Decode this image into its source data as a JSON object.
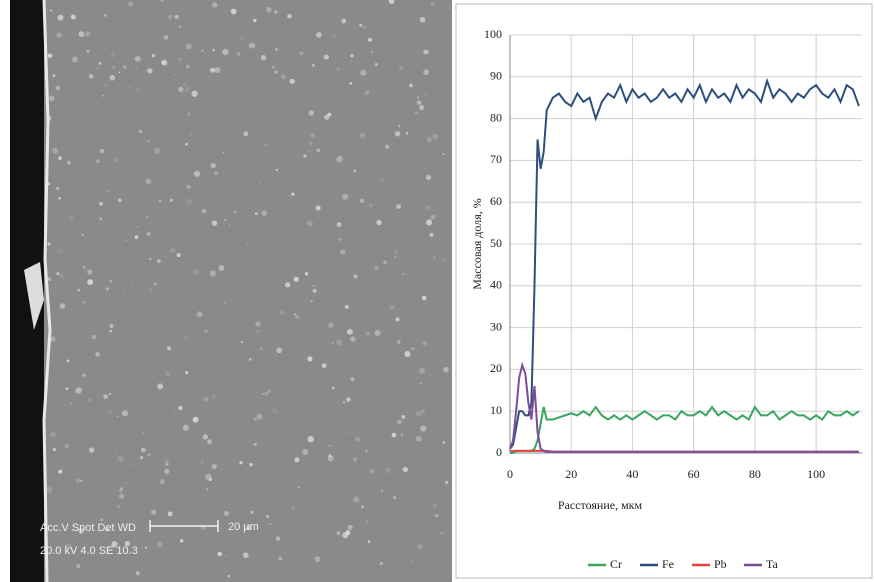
{
  "micrograph": {
    "label_line1": "Acc.V  Spot Det  WD",
    "label_line2": "20.0 kV 4.0   SE   10.3",
    "scale_bar": "20 µm"
  },
  "chart_data": {
    "type": "line",
    "y_label": "Массовая доля, %",
    "x_label": "Расстояние, мкм",
    "x": [
      0,
      1,
      2,
      3,
      4,
      5,
      6,
      7,
      8,
      9,
      10,
      11,
      12,
      14,
      16,
      18,
      20,
      22,
      24,
      26,
      28,
      30,
      32,
      34,
      36,
      38,
      40,
      42,
      44,
      46,
      48,
      50,
      52,
      54,
      56,
      58,
      60,
      62,
      64,
      66,
      68,
      70,
      72,
      74,
      76,
      78,
      80,
      82,
      84,
      86,
      88,
      90,
      92,
      94,
      96,
      98,
      100,
      102,
      104,
      106,
      108,
      110,
      112,
      114
    ],
    "xlim": [
      0,
      115
    ],
    "xticks": [
      0,
      20,
      40,
      60,
      80,
      100
    ],
    "ylim": [
      0,
      100
    ],
    "yticks": [
      0,
      10,
      20,
      30,
      40,
      50,
      60,
      70,
      80,
      90,
      100
    ],
    "grid": true,
    "legend": "bottom",
    "series": [
      {
        "name": "Cr",
        "color": "#3aa55e",
        "values": [
          0,
          0,
          0.5,
          0.5,
          0.5,
          0.5,
          0.5,
          0.5,
          1,
          3,
          7,
          11,
          8,
          8,
          8.5,
          9,
          9.5,
          9,
          10,
          9,
          11,
          9,
          8,
          9,
          8,
          9,
          8,
          9,
          10,
          9,
          8,
          9,
          9,
          8,
          10,
          9,
          9,
          10,
          9,
          11,
          9,
          10,
          9,
          8,
          9,
          8,
          11,
          9,
          9,
          10,
          8,
          9,
          10,
          9,
          9,
          8,
          9,
          8,
          10,
          9,
          9,
          10,
          9,
          10
        ]
      },
      {
        "name": "Fe",
        "color": "#2e4f7e",
        "values": [
          1,
          2,
          6,
          10,
          10,
          9,
          9,
          12,
          40,
          75,
          68,
          72,
          82,
          85,
          86,
          84,
          83,
          86,
          84,
          85,
          80,
          84,
          86,
          85,
          88,
          84,
          87,
          85,
          86,
          84,
          85,
          87,
          85,
          86,
          84,
          87,
          85,
          88,
          84,
          87,
          85,
          86,
          84,
          88,
          85,
          87,
          86,
          84,
          89,
          85,
          87,
          86,
          84,
          86,
          85,
          87,
          88,
          86,
          85,
          87,
          84,
          88,
          87,
          83
        ]
      },
      {
        "name": "Pb",
        "color": "#e2453f",
        "values": [
          0.5,
          0.5,
          0.5,
          0.5,
          0.5,
          0.5,
          0.5,
          0.5,
          0.5,
          0.5,
          0.5,
          0.5,
          0.5,
          0.3,
          0.3,
          0.3,
          0.3,
          0.3,
          0.3,
          0.3,
          0.3,
          0.3,
          0.3,
          0.3,
          0.3,
          0.3,
          0.3,
          0.3,
          0.3,
          0.3,
          0.3,
          0.3,
          0.3,
          0.3,
          0.3,
          0.3,
          0.3,
          0.3,
          0.3,
          0.3,
          0.3,
          0.3,
          0.3,
          0.3,
          0.3,
          0.3,
          0.3,
          0.3,
          0.3,
          0.3,
          0.3,
          0.3,
          0.3,
          0.3,
          0.3,
          0.3,
          0.3,
          0.3,
          0.3,
          0.3,
          0.3,
          0.3,
          0.3,
          0.3
        ]
      },
      {
        "name": "Ta",
        "color": "#7b4d9c",
        "values": [
          1,
          3,
          10,
          18,
          21,
          19,
          12,
          8,
          16,
          5,
          1,
          0.5,
          0.3,
          0.3,
          0.3,
          0.3,
          0.3,
          0.3,
          0.3,
          0.3,
          0.3,
          0.3,
          0.3,
          0.3,
          0.3,
          0.3,
          0.3,
          0.3,
          0.3,
          0.3,
          0.3,
          0.3,
          0.3,
          0.3,
          0.3,
          0.3,
          0.3,
          0.3,
          0.3,
          0.3,
          0.3,
          0.3,
          0.3,
          0.3,
          0.3,
          0.3,
          0.3,
          0.3,
          0.3,
          0.3,
          0.3,
          0.3,
          0.3,
          0.3,
          0.3,
          0.3,
          0.3,
          0.3,
          0.3,
          0.3,
          0.3,
          0.3,
          0.3,
          0.3
        ]
      }
    ]
  }
}
